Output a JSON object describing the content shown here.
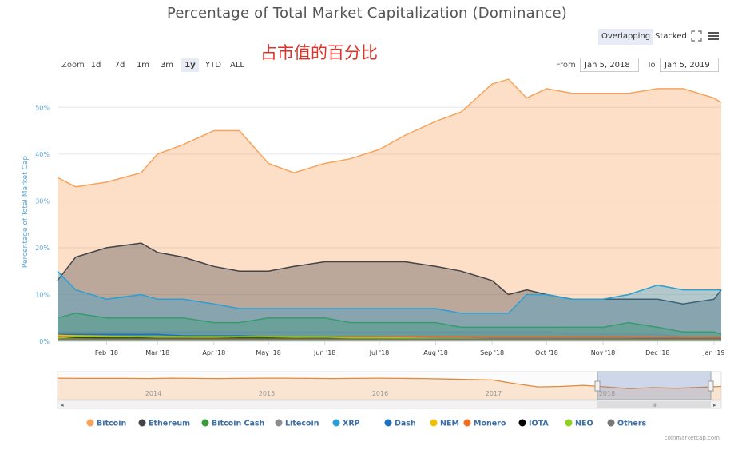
{
  "title": "Percentage of Total Market Capitalization (Dominance)",
  "annotation": "占市值的百分比",
  "modes": {
    "overlapping": "Overlapping",
    "stacked": "Stacked",
    "active": "overlapping"
  },
  "icons": {
    "fullscreen": "fullscreen-icon",
    "menu": "hamburger-menu-icon"
  },
  "zoom": {
    "label": "Zoom",
    "buttons": [
      "1d",
      "7d",
      "1m",
      "3m",
      "1y",
      "YTD",
      "ALL"
    ],
    "active": "1y"
  },
  "range": {
    "from_label": "From",
    "from_value": "Jan 5, 2018",
    "to_label": "To",
    "to_value": "Jan 5, 2019"
  },
  "navigator": {
    "year_labels": [
      "2014",
      "2015",
      "2016",
      "2017",
      "2018"
    ],
    "scroll_left": "◂",
    "scroll_right": "▸",
    "grip": "III"
  },
  "credit": "coinmarketcap.com",
  "colors": {
    "Bitcoin": "#f7a35c",
    "Ethereum": "#434348",
    "Bitcoin Cash": "#3c9a3c",
    "Litecoin": "#8c8c8c",
    "XRP": "#2b9fd4",
    "Dash": "#1f6fbf",
    "NEM": "#f0c000",
    "Monero": "#f26f1f",
    "IOTA": "#000000",
    "NEO": "#90d020",
    "Others": "#777777"
  },
  "chart_data": {
    "type": "area",
    "title": "Percentage of Total Market Capitalization (Dominance)",
    "xlabel": "",
    "ylabel": "Percentage of Total Market Cap",
    "y_ticks": [
      "0%",
      "10%",
      "20%",
      "30%",
      "40%",
      "50%"
    ],
    "ylim": [
      0,
      55
    ],
    "x_ticks": [
      "Feb '18",
      "Mar '18",
      "Apr '18",
      "May '18",
      "Jun '18",
      "Jul '18",
      "Aug '18",
      "Sep '18",
      "Oct '18",
      "Nov '18",
      "Dec '18",
      "Jan '19"
    ],
    "x": [
      "2018-01-05",
      "2018-01-15",
      "2018-02-01",
      "2018-02-20",
      "2018-03-01",
      "2018-03-15",
      "2018-04-01",
      "2018-04-15",
      "2018-05-01",
      "2018-05-15",
      "2018-06-01",
      "2018-06-15",
      "2018-07-01",
      "2018-07-15",
      "2018-08-01",
      "2018-08-15",
      "2018-09-01",
      "2018-09-10",
      "2018-09-20",
      "2018-10-01",
      "2018-10-15",
      "2018-11-01",
      "2018-11-15",
      "2018-12-01",
      "2018-12-15",
      "2019-01-01",
      "2019-01-05"
    ],
    "legend_position": "bottom",
    "series": [
      {
        "name": "Bitcoin",
        "values": [
          35,
          33,
          34,
          36,
          40,
          42,
          45,
          45,
          38,
          36,
          38,
          39,
          41,
          44,
          47,
          49,
          55,
          56,
          52,
          54,
          53,
          53,
          53,
          54,
          54,
          52,
          51
        ]
      },
      {
        "name": "Ethereum",
        "values": [
          13,
          18,
          20,
          21,
          19,
          18,
          16,
          15,
          15,
          16,
          17,
          17,
          17,
          17,
          16,
          15,
          13,
          10,
          11,
          10,
          9,
          9,
          9,
          9,
          8,
          9,
          11
        ]
      },
      {
        "name": "Bitcoin Cash",
        "values": [
          5,
          6,
          5,
          5,
          5,
          5,
          4,
          4,
          5,
          5,
          5,
          4,
          4,
          4,
          4,
          3,
          3,
          3,
          3,
          3,
          3,
          3,
          4,
          3,
          2,
          2,
          1.5
        ]
      },
      {
        "name": "Litecoin",
        "values": [
          2,
          2,
          2,
          2,
          2,
          2,
          2,
          2,
          2,
          2,
          2,
          2,
          2,
          2,
          2,
          2,
          2,
          2,
          2,
          2,
          1.5,
          1.5,
          1.5,
          1.5,
          1,
          1,
          1
        ]
      },
      {
        "name": "XRP",
        "values": [
          15,
          11,
          9,
          10,
          9,
          9,
          8,
          7,
          7,
          7,
          7,
          7,
          7,
          7,
          7,
          6,
          6,
          6,
          10,
          10,
          9,
          9,
          10,
          12,
          11,
          11,
          11
        ]
      },
      {
        "name": "Dash",
        "values": [
          1.5,
          1.5,
          1.5,
          1.5,
          1.5,
          1.2,
          1.2,
          1.2,
          1,
          1,
          1,
          1,
          1,
          1,
          1,
          1,
          1,
          1,
          1,
          1,
          1,
          1,
          1,
          0.8,
          0.8,
          0.8,
          0.8
        ]
      },
      {
        "name": "NEM",
        "values": [
          1.3,
          1.2,
          1.1,
          1,
          1,
          1,
          0.8,
          0.8,
          0.7,
          0.7,
          0.6,
          0.6,
          0.6,
          0.5,
          0.5,
          0.5,
          0.5,
          0.5,
          0.5,
          0.5,
          0.4,
          0.4,
          0.4,
          0.4,
          0.4,
          0.4,
          0.4
        ]
      },
      {
        "name": "Monero",
        "values": [
          1,
          1,
          1,
          1,
          1,
          1,
          1,
          1,
          1,
          1,
          1,
          1,
          1,
          1,
          1,
          1,
          1,
          1,
          1,
          1,
          1,
          1,
          1,
          0.9,
          0.9,
          0.9,
          0.9
        ]
      },
      {
        "name": "IOTA",
        "values": [
          0.8,
          0.8,
          0.7,
          0.7,
          0.6,
          0.6,
          0.6,
          0.7,
          0.7,
          0.6,
          0.6,
          0.5,
          0.5,
          0.5,
          0.5,
          0.5,
          0.5,
          0.5,
          0.5,
          0.5,
          0.5,
          0.5,
          0.5,
          0.5,
          0.5,
          0.5,
          0.5
        ]
      },
      {
        "name": "NEO",
        "values": [
          0.7,
          1,
          1,
          1,
          1,
          1,
          1,
          1,
          1,
          1,
          1,
          0.8,
          0.8,
          0.7,
          0.6,
          0.6,
          0.5,
          0.5,
          0.5,
          0.5,
          0.5,
          0.5,
          0.5,
          0.4,
          0.4,
          0.4,
          0.4
        ]
      },
      {
        "name": "Others",
        "values": [
          0.5,
          0.5,
          0.5,
          0.5,
          0.5,
          0.5,
          0.5,
          0.5,
          0.5,
          0.5,
          0.5,
          0.5,
          0.5,
          0.5,
          0.5,
          0.5,
          0.5,
          0.5,
          0.5,
          0.5,
          0.5,
          0.5,
          0.5,
          0.5,
          0.5,
          0.5,
          0.5
        ]
      }
    ],
    "navigator_series": {
      "name": "Bitcoin",
      "values": [
        86,
        85,
        85,
        85,
        84,
        86,
        85,
        84,
        85,
        86,
        86,
        85,
        84,
        85,
        86,
        85,
        84,
        82,
        80,
        78,
        62,
        48,
        50,
        55,
        48,
        40,
        45,
        42,
        46,
        50
      ]
    }
  }
}
